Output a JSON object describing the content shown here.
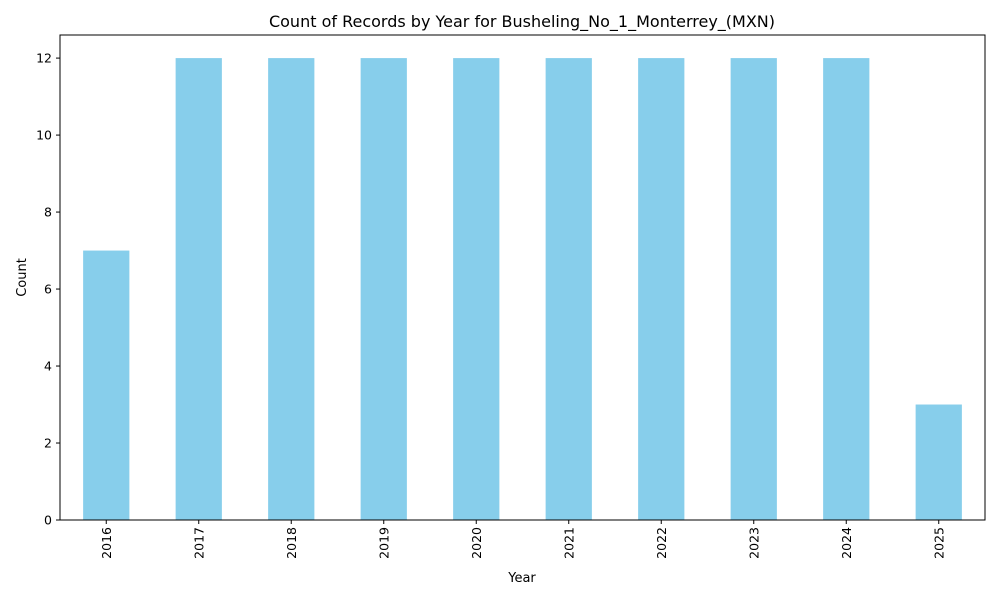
{
  "chart_data": {
    "type": "bar",
    "title": "Count of Records by Year for Busheling_No_1_Monterrey_(MXN)",
    "xlabel": "Year",
    "ylabel": "Count",
    "categories": [
      "2016",
      "2017",
      "2018",
      "2019",
      "2020",
      "2021",
      "2022",
      "2023",
      "2024",
      "2025"
    ],
    "values": [
      7,
      12,
      12,
      12,
      12,
      12,
      12,
      12,
      12,
      3
    ],
    "ylim": [
      0,
      12.6
    ],
    "yticks": [
      0,
      2,
      4,
      6,
      8,
      10,
      12
    ],
    "bar_color": "#87CEEB",
    "grid": false,
    "legend": "none",
    "x_tick_rotation": "vertical"
  }
}
